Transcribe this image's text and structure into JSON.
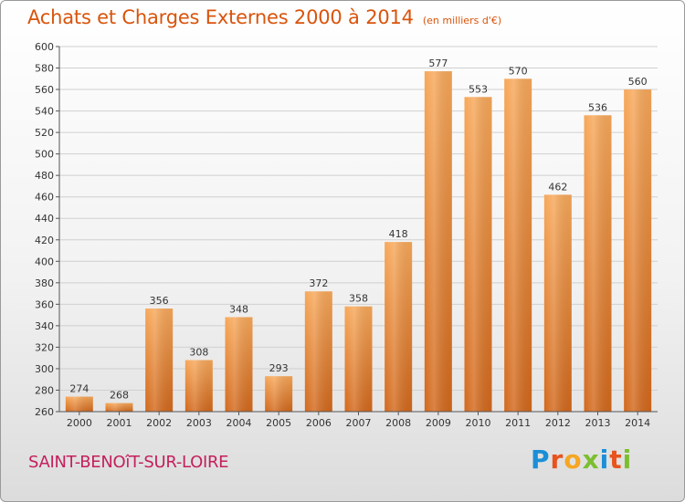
{
  "title": "Achats et Charges Externes 2000 à 2014",
  "subtitle": "(en milliers d'€)",
  "location": "SAINT-BENOîT-SUR-LOIRE",
  "logo": {
    "text": "Proxiti",
    "colors": [
      "#1b8fd6",
      "#e8531d",
      "#f5a623",
      "#7cbf2e",
      "#1b8fd6",
      "#e8531d",
      "#7cbf2e"
    ]
  },
  "colors": {
    "bar_top": "#f7a85a",
    "bar_bottom": "#d2681c",
    "title": "#d9540c",
    "city": "#c51f5d"
  },
  "chart_data": {
    "type": "bar",
    "categories": [
      "2000",
      "2001",
      "2002",
      "2003",
      "2004",
      "2005",
      "2006",
      "2007",
      "2008",
      "2009",
      "2010",
      "2011",
      "2012",
      "2013",
      "2014"
    ],
    "values": [
      274,
      268,
      356,
      308,
      348,
      293,
      372,
      358,
      418,
      577,
      553,
      570,
      462,
      536,
      560
    ],
    "ylim": [
      260,
      600
    ],
    "yticks": [
      260,
      280,
      300,
      320,
      340,
      360,
      380,
      400,
      420,
      440,
      460,
      480,
      500,
      520,
      540,
      560,
      580,
      600
    ],
    "grid": true,
    "title": "Achats et Charges Externes 2000 à 2014",
    "xlabel": "",
    "ylabel": ""
  }
}
